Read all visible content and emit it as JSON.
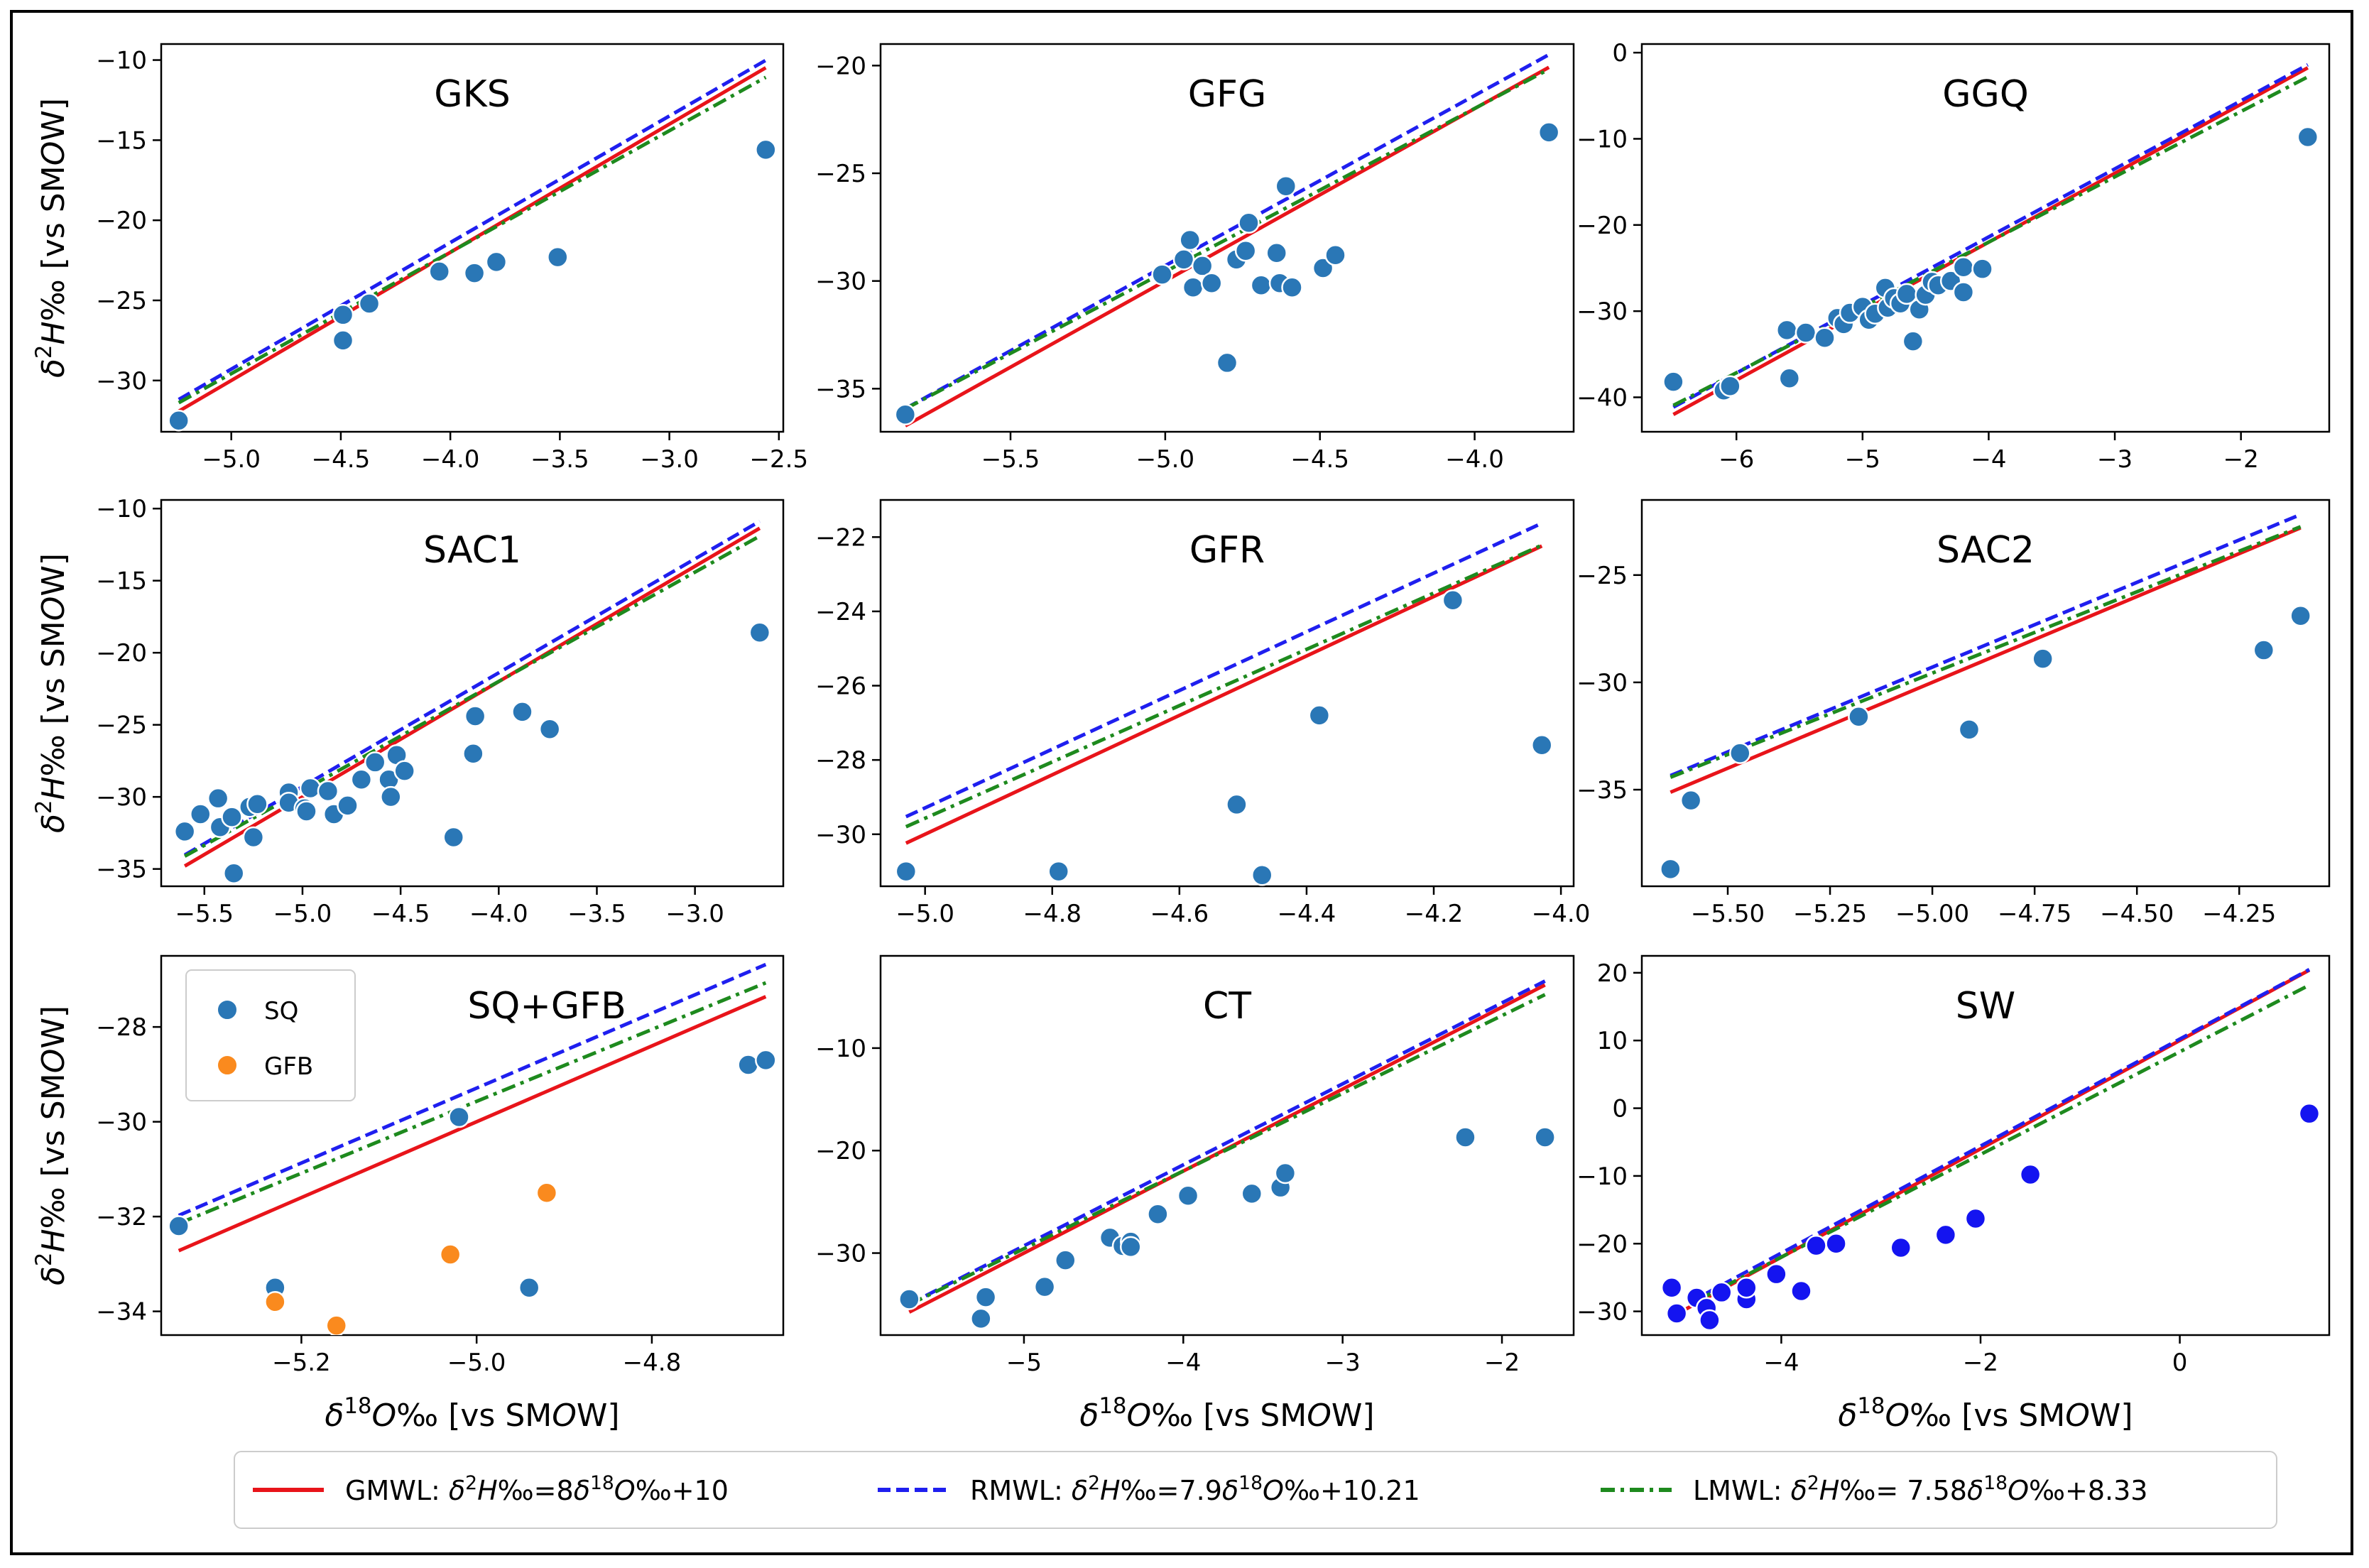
{
  "figure": {
    "legend_items": [
      {
        "label": "GMWL: δ²H‰=8δ¹⁸O‰+10",
        "color": "#e8141a",
        "style": "solid",
        "slope": 8,
        "intercept": 10
      },
      {
        "label": "RMWL: δ²H‰=7.9δ¹⁸O‰+10.21",
        "color": "#1f1fef",
        "style": "dashed",
        "slope": 7.9,
        "intercept": 10.21
      },
      {
        "label": "LMWL: δ²H‰= 7.58δ¹⁸O‰+8.33",
        "color": "#1e8a1e",
        "style": "dashdot",
        "slope": 7.58,
        "intercept": 8.33
      }
    ],
    "point_color": "#2a77b6",
    "orange_color": "#fa8a1e",
    "sw_color": "#1414f0"
  },
  "chart_data": [
    {
      "type": "scatter",
      "title": "GKS",
      "xlabel": "",
      "ylabel": "δ²H‰ [vs SMOW]",
      "xlim": [
        -5.32,
        -2.48
      ],
      "ylim": [
        -33.2,
        -9.0
      ],
      "xticks": [
        -5.0,
        -4.5,
        -4.0,
        -3.5,
        -3.0,
        -2.5
      ],
      "xtick_labels": [
        "−5.0",
        "−4.5",
        "−4.0",
        "−3.5",
        "−3.0",
        "−2.5"
      ],
      "yticks": [
        -30,
        -25,
        -20,
        -15,
        -10
      ],
      "ytick_labels": [
        "−30",
        "−25",
        "−20",
        "−15",
        "−10"
      ],
      "line_x": [
        -5.24,
        -2.56
      ],
      "series": [
        {
          "name": "SQ",
          "points": [
            [
              -5.24,
              -32.5
            ],
            [
              -4.49,
              -27.5
            ],
            [
              -4.49,
              -25.9
            ],
            [
              -4.37,
              -25.2
            ],
            [
              -4.05,
              -23.2
            ],
            [
              -3.89,
              -23.3
            ],
            [
              -3.79,
              -22.6
            ],
            [
              -3.51,
              -22.3
            ],
            [
              -2.56,
              -15.6
            ]
          ]
        }
      ]
    },
    {
      "type": "scatter",
      "title": "GFG",
      "xlabel": "",
      "ylabel": "",
      "xlim": [
        -5.92,
        -3.68
      ],
      "ylim": [
        -37.0,
        -19.0
      ],
      "xticks": [
        -5.5,
        -5.0,
        -4.5,
        -4.0
      ],
      "xtick_labels": [
        "−5.5",
        "−5.0",
        "−4.5",
        "−4.0"
      ],
      "yticks": [
        -35,
        -30,
        -25,
        -20
      ],
      "ytick_labels": [
        "−35",
        "−30",
        "−25",
        "−20"
      ],
      "line_x": [
        -5.84,
        -3.76
      ],
      "series": [
        {
          "name": "SQ",
          "points": [
            [
              -5.84,
              -36.2
            ],
            [
              -5.01,
              -29.7
            ],
            [
              -4.94,
              -29.0
            ],
            [
              -4.92,
              -28.1
            ],
            [
              -4.91,
              -30.3
            ],
            [
              -4.88,
              -29.3
            ],
            [
              -4.85,
              -30.1
            ],
            [
              -4.8,
              -33.8
            ],
            [
              -4.77,
              -29.0
            ],
            [
              -4.74,
              -28.6
            ],
            [
              -4.73,
              -27.3
            ],
            [
              -4.69,
              -30.2
            ],
            [
              -4.64,
              -28.7
            ],
            [
              -4.63,
              -30.1
            ],
            [
              -4.61,
              -25.6
            ],
            [
              -4.59,
              -30.3
            ],
            [
              -4.49,
              -29.4
            ],
            [
              -4.45,
              -28.8
            ],
            [
              -3.76,
              -23.1
            ]
          ]
        }
      ]
    },
    {
      "type": "scatter",
      "title": "GGQ",
      "xlabel": "",
      "ylabel": "",
      "xlim": [
        -6.75,
        -1.3
      ],
      "ylim": [
        -44.0,
        1.0
      ],
      "xticks": [
        -6,
        -5,
        -4,
        -3,
        -2
      ],
      "xtick_labels": [
        "−6",
        "−5",
        "−4",
        "−3",
        "−2"
      ],
      "yticks": [
        -40,
        -30,
        -20,
        -10,
        0
      ],
      "ytick_labels": [
        "−40",
        "−30",
        "−20",
        "−10",
        "0"
      ],
      "line_x": [
        -6.5,
        -1.47
      ],
      "series": [
        {
          "name": "SQ",
          "points": [
            [
              -6.5,
              -38.2
            ],
            [
              -6.1,
              -39.2
            ],
            [
              -6.05,
              -38.7
            ],
            [
              -5.6,
              -32.2
            ],
            [
              -5.58,
              -37.8
            ],
            [
              -5.45,
              -32.5
            ],
            [
              -5.3,
              -33.1
            ],
            [
              -5.2,
              -30.8
            ],
            [
              -5.15,
              -31.5
            ],
            [
              -5.1,
              -30.2
            ],
            [
              -5.0,
              -29.5
            ],
            [
              -4.95,
              -31.0
            ],
            [
              -4.9,
              -30.3
            ],
            [
              -4.82,
              -27.3
            ],
            [
              -4.8,
              -29.6
            ],
            [
              -4.75,
              -28.5
            ],
            [
              -4.7,
              -29.1
            ],
            [
              -4.65,
              -28.0
            ],
            [
              -4.6,
              -33.5
            ],
            [
              -4.55,
              -29.8
            ],
            [
              -4.5,
              -28.1
            ],
            [
              -4.45,
              -26.6
            ],
            [
              -4.4,
              -27.0
            ],
            [
              -4.3,
              -26.5
            ],
            [
              -4.2,
              -27.8
            ],
            [
              -4.2,
              -24.9
            ],
            [
              -4.05,
              -25.1
            ],
            [
              -1.47,
              -9.8
            ]
          ]
        }
      ]
    },
    {
      "type": "scatter",
      "title": "SAC1",
      "xlabel": "",
      "ylabel": "δ²H‰ [vs SMOW]",
      "xlim": [
        -5.72,
        -2.55
      ],
      "ylim": [
        -36.2,
        -9.4
      ],
      "xticks": [
        -5.5,
        -5.0,
        -4.5,
        -4.0,
        -3.5,
        -3.0
      ],
      "xtick_labels": [
        "−5.5",
        "−5.0",
        "−4.5",
        "−4.0",
        "−3.5",
        "−3.0"
      ],
      "yticks": [
        -35,
        -30,
        -25,
        -20,
        -15,
        -10
      ],
      "ytick_labels": [
        "−35",
        "−30",
        "−25",
        "−20",
        "−15",
        "−10"
      ],
      "line_x": [
        -5.6,
        -2.67
      ],
      "series": [
        {
          "name": "SQ",
          "points": [
            [
              -5.6,
              -32.4
            ],
            [
              -5.52,
              -31.2
            ],
            [
              -5.43,
              -30.1
            ],
            [
              -5.42,
              -32.1
            ],
            [
              -5.36,
              -31.4
            ],
            [
              -5.35,
              -35.3
            ],
            [
              -5.27,
              -30.7
            ],
            [
              -5.25,
              -32.8
            ],
            [
              -5.23,
              -30.5
            ],
            [
              -5.07,
              -29.7
            ],
            [
              -5.07,
              -30.4
            ],
            [
              -4.99,
              -30.8
            ],
            [
              -4.98,
              -31.0
            ],
            [
              -4.96,
              -29.4
            ],
            [
              -4.87,
              -29.6
            ],
            [
              -4.84,
              -31.2
            ],
            [
              -4.77,
              -30.6
            ],
            [
              -4.7,
              -28.8
            ],
            [
              -4.63,
              -27.6
            ],
            [
              -4.56,
              -28.8
            ],
            [
              -4.55,
              -30.0
            ],
            [
              -4.52,
              -27.1
            ],
            [
              -4.48,
              -28.2
            ],
            [
              -4.23,
              -32.8
            ],
            [
              -4.13,
              -27.0
            ],
            [
              -4.12,
              -24.4
            ],
            [
              -3.88,
              -24.1
            ],
            [
              -3.74,
              -25.3
            ],
            [
              -2.67,
              -18.6
            ]
          ]
        }
      ]
    },
    {
      "type": "scatter",
      "title": "GFR",
      "xlabel": "",
      "ylabel": "",
      "xlim": [
        -5.07,
        -3.98
      ],
      "ylim": [
        -31.4,
        -21.0
      ],
      "xticks": [
        -5.0,
        -4.8,
        -4.6,
        -4.4,
        -4.2,
        -4.0
      ],
      "xtick_labels": [
        "−5.0",
        "−4.8",
        "−4.6",
        "−4.4",
        "−4.2",
        "−4.0"
      ],
      "yticks": [
        -30,
        -28,
        -26,
        -24,
        -22
      ],
      "ytick_labels": [
        "−30",
        "−28",
        "−26",
        "−24",
        "−22"
      ],
      "line_x": [
        -5.03,
        -4.03
      ],
      "series": [
        {
          "name": "SQ",
          "points": [
            [
              -5.03,
              -31.0
            ],
            [
              -4.79,
              -31.0
            ],
            [
              -4.51,
              -29.2
            ],
            [
              -4.47,
              -31.1
            ],
            [
              -4.38,
              -26.8
            ],
            [
              -4.17,
              -23.7
            ],
            [
              -4.03,
              -27.6
            ]
          ]
        }
      ]
    },
    {
      "type": "scatter",
      "title": "SAC2",
      "xlabel": "",
      "ylabel": "",
      "xlim": [
        -5.71,
        -4.03
      ],
      "ylim": [
        -39.5,
        -21.5
      ],
      "xticks": [
        -5.5,
        -5.25,
        -5.0,
        -4.75,
        -4.5,
        -4.25
      ],
      "xtick_labels": [
        "−5.50",
        "−5.25",
        "−5.00",
        "−4.75",
        "−4.50",
        "−4.25"
      ],
      "yticks": [
        -35,
        -30,
        -25
      ],
      "ytick_labels": [
        "−35",
        "−30",
        "−25"
      ],
      "line_x": [
        -5.64,
        -4.1
      ],
      "series": [
        {
          "name": "SQ",
          "points": [
            [
              -5.64,
              -38.7
            ],
            [
              -5.59,
              -35.5
            ],
            [
              -5.47,
              -33.3
            ],
            [
              -5.18,
              -31.6
            ],
            [
              -4.91,
              -32.2
            ],
            [
              -4.73,
              -28.9
            ],
            [
              -4.19,
              -28.5
            ],
            [
              -4.1,
              -26.9
            ]
          ]
        }
      ]
    },
    {
      "type": "scatter",
      "title": "SQ+GFB",
      "xlabel": "δ¹⁸O‰ [vs SMOW]",
      "ylabel": "δ²H‰ [vs SMOW]",
      "xlim": [
        -5.36,
        -4.65
      ],
      "ylim": [
        -34.5,
        -26.5
      ],
      "xticks": [
        -5.2,
        -5.0,
        -4.8
      ],
      "xtick_labels": [
        "−5.2",
        "−5.0",
        "−4.8"
      ],
      "yticks": [
        -34,
        -32,
        -30,
        -28
      ],
      "ytick_labels": [
        "−34",
        "−32",
        "−30",
        "−28"
      ],
      "line_x": [
        -5.34,
        -4.67
      ],
      "legend": [
        {
          "label": "SQ",
          "color": "#2a77b6"
        },
        {
          "label": "GFB",
          "color": "#fa8a1e"
        }
      ],
      "series": [
        {
          "name": "SQ",
          "points": [
            [
              -5.34,
              -32.2
            ],
            [
              -5.23,
              -33.5
            ],
            [
              -5.02,
              -29.9
            ],
            [
              -4.94,
              -33.5
            ],
            [
              -4.69,
              -28.8
            ],
            [
              -4.67,
              -28.7
            ]
          ]
        },
        {
          "name": "GFB",
          "points": [
            [
              -5.23,
              -33.8
            ],
            [
              -5.16,
              -34.3
            ],
            [
              -5.03,
              -32.8
            ],
            [
              -4.92,
              -31.5
            ]
          ]
        }
      ]
    },
    {
      "type": "scatter",
      "title": "CT",
      "xlabel": "δ¹⁸O‰ [vs SMOW]",
      "ylabel": "",
      "xlim": [
        -5.9,
        -1.55
      ],
      "ylim": [
        -38.0,
        -1.0
      ],
      "xticks": [
        -5,
        -4,
        -3,
        -2
      ],
      "xtick_labels": [
        "−5",
        "−4",
        "−3",
        "−2"
      ],
      "yticks": [
        -30,
        -20,
        -10
      ],
      "ytick_labels": [
        "−30",
        "−20",
        "−10"
      ],
      "line_x": [
        -5.72,
        -1.73
      ],
      "series": [
        {
          "name": "SQ",
          "points": [
            [
              -5.72,
              -34.5
            ],
            [
              -5.27,
              -36.4
            ],
            [
              -5.24,
              -34.3
            ],
            [
              -4.87,
              -33.3
            ],
            [
              -4.74,
              -30.7
            ],
            [
              -4.46,
              -28.5
            ],
            [
              -4.38,
              -29.3
            ],
            [
              -4.33,
              -28.9
            ],
            [
              -4.33,
              -29.4
            ],
            [
              -4.16,
              -26.2
            ],
            [
              -3.97,
              -24.4
            ],
            [
              -3.57,
              -24.2
            ],
            [
              -3.39,
              -23.6
            ],
            [
              -3.36,
              -22.2
            ],
            [
              -2.23,
              -18.7
            ],
            [
              -1.73,
              -18.7
            ]
          ]
        }
      ]
    },
    {
      "type": "scatter",
      "title": "SW",
      "xlabel": "δ¹⁸O‰ [vs SMOW]",
      "ylabel": "",
      "xlim": [
        -5.4,
        1.5
      ],
      "ylim": [
        -33.5,
        22.5
      ],
      "xticks": [
        -4,
        -2,
        0
      ],
      "xtick_labels": [
        "−4",
        "−2",
        "0"
      ],
      "yticks": [
        -30,
        -20,
        -10,
        0,
        10,
        20
      ],
      "ytick_labels": [
        "−30",
        "−20",
        "−10",
        "0",
        "10",
        "20"
      ],
      "line_x": [
        -5.1,
        1.3
      ],
      "series": [
        {
          "name": "SW",
          "points": [
            [
              -5.1,
              -26.5
            ],
            [
              -5.05,
              -30.3
            ],
            [
              -4.85,
              -28.0
            ],
            [
              -4.75,
              -29.5
            ],
            [
              -4.72,
              -31.3
            ],
            [
              -4.6,
              -27.2
            ],
            [
              -4.35,
              -28.2
            ],
            [
              -4.35,
              -26.5
            ],
            [
              -4.05,
              -24.5
            ],
            [
              -3.8,
              -27.0
            ],
            [
              -3.65,
              -20.3
            ],
            [
              -3.45,
              -20.0
            ],
            [
              -2.8,
              -20.6
            ],
            [
              -2.35,
              -18.7
            ],
            [
              -2.05,
              -16.3
            ],
            [
              -1.5,
              -9.8
            ],
            [
              1.3,
              -0.8
            ]
          ]
        }
      ]
    }
  ]
}
